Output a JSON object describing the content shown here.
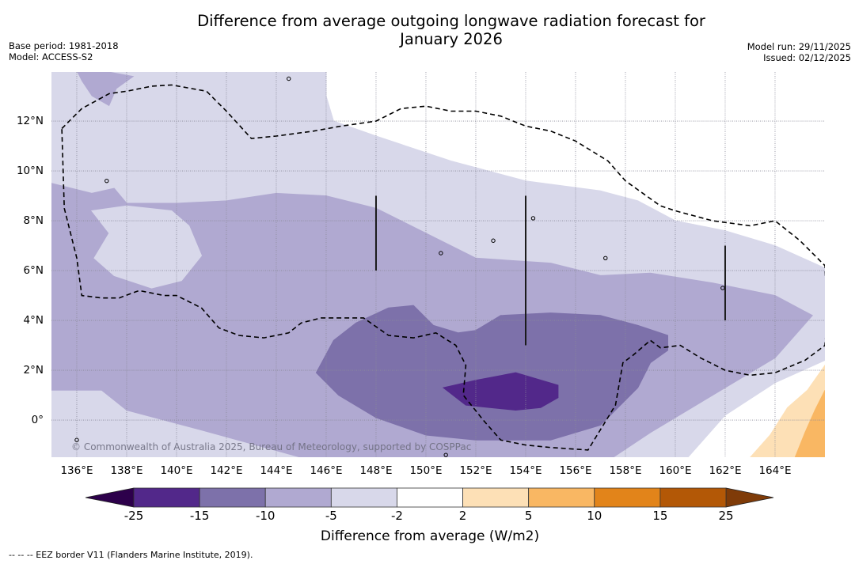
{
  "title": {
    "line1": "Difference from average outgoing longwave radiation forecast for",
    "line2": "January 2026"
  },
  "meta_left": {
    "base_period": "Base period: 1981-2018",
    "model": "Model: ACCESS-S2"
  },
  "meta_right": {
    "model_run": "Model run: 29/11/2025",
    "issued": "Issued: 02/12/2025"
  },
  "copyright": "© Commonwealth of Australia 2025, Bureau of Meteorology, supported by COSPPac",
  "footnote": "--  --  -- EEZ border V11 (Flanders Marine Institute, 2019).",
  "chart_data": {
    "type": "heatmap",
    "title": "Difference from average outgoing longwave radiation forecast for January 2026",
    "xlabel": "",
    "ylabel": "",
    "x_range": [
      135,
      166
    ],
    "y_range": [
      -1.5,
      14
    ],
    "x_ticks": [
      136,
      138,
      140,
      142,
      144,
      146,
      148,
      150,
      152,
      154,
      156,
      158,
      160,
      162,
      164
    ],
    "x_tick_labels": [
      "136°E",
      "138°E",
      "140°E",
      "142°E",
      "144°E",
      "146°E",
      "148°E",
      "150°E",
      "152°E",
      "154°E",
      "156°E",
      "158°E",
      "160°E",
      "162°E",
      "164°E"
    ],
    "y_ticks": [
      0,
      2,
      4,
      6,
      8,
      10,
      12
    ],
    "y_tick_labels": [
      "0°",
      "2°N",
      "4°N",
      "6°N",
      "8°N",
      "10°N",
      "12°N"
    ],
    "grid": true,
    "colorbar": {
      "title": "Difference from average (W/m2)",
      "boundaries": [
        -25,
        -15,
        -10,
        -5,
        -2,
        2,
        5,
        10,
        15,
        25
      ],
      "boundary_labels": [
        "-25",
        "-15",
        "-10",
        "-5",
        "-2",
        "2",
        "5",
        "10",
        "15",
        "25"
      ],
      "colors": [
        "#52288a",
        "#7d71aa",
        "#b0a9d1",
        "#d8d8ea",
        "#ffffff",
        "#fde0b6",
        "#f9b763",
        "#e2841a",
        "#b35806"
      ],
      "extend_min_color": "#2d004b",
      "extend_max_color": "#7f3b08",
      "placement": "bottom"
    },
    "regions": [
      {
        "level": "-5 to -2",
        "color": "#d8d8ea",
        "polygon": [
          [
            135,
            14
          ],
          [
            146,
            14
          ],
          [
            146,
            13
          ],
          [
            146.3,
            12
          ],
          [
            148,
            11.4
          ],
          [
            151,
            10.4
          ],
          [
            154,
            9.6
          ],
          [
            157,
            9.2
          ],
          [
            158.5,
            8.8
          ],
          [
            160,
            8
          ],
          [
            162,
            7.6
          ],
          [
            164,
            7
          ],
          [
            166,
            6.1
          ],
          [
            166,
            2.4
          ],
          [
            164,
            1.5
          ],
          [
            162,
            0.2
          ],
          [
            160.5,
            -1.5
          ],
          [
            135,
            -1.5
          ]
        ]
      },
      {
        "level": "-10 to -5",
        "color": "#b0a9d1",
        "polygon": [
          [
            135,
            9.5
          ],
          [
            136.6,
            9.1
          ],
          [
            137.5,
            9.3
          ],
          [
            138,
            8.7
          ],
          [
            140,
            8.7
          ],
          [
            142,
            8.8
          ],
          [
            144,
            9.1
          ],
          [
            146,
            9.0
          ],
          [
            148,
            8.5
          ],
          [
            150,
            7.5
          ],
          [
            152,
            6.5
          ],
          [
            155,
            6.3
          ],
          [
            157,
            5.8
          ],
          [
            159,
            5.9
          ],
          [
            161.5,
            5.5
          ],
          [
            164,
            5.0
          ],
          [
            165.5,
            4.2
          ],
          [
            164,
            2.5
          ],
          [
            161.5,
            1.0
          ],
          [
            159,
            -0.5
          ],
          [
            157.5,
            -1.5
          ],
          [
            145,
            -1.5
          ],
          [
            141,
            -0.4
          ],
          [
            138,
            0.4
          ],
          [
            137,
            1.2
          ],
          [
            135,
            1.2
          ]
        ]
      },
      {
        "level": "-5 to -2 (inner hole)",
        "color": "#d8d8ea",
        "polygon": [
          [
            136.6,
            8.4
          ],
          [
            137.3,
            7.5
          ],
          [
            136.7,
            6.5
          ],
          [
            137.5,
            5.8
          ],
          [
            139,
            5.3
          ],
          [
            140.2,
            5.6
          ],
          [
            141,
            6.6
          ],
          [
            140.5,
            7.8
          ],
          [
            139.8,
            8.4
          ],
          [
            138,
            8.6
          ]
        ]
      },
      {
        "level": "-15 to -10",
        "color": "#7d71aa",
        "polygon": [
          [
            145.6,
            1.9
          ],
          [
            146.3,
            3.2
          ],
          [
            147.2,
            3.9
          ],
          [
            148.5,
            4.5
          ],
          [
            149.5,
            4.6
          ],
          [
            150.3,
            3.8
          ],
          [
            151.3,
            3.5
          ],
          [
            152,
            3.6
          ],
          [
            153,
            4.2
          ],
          [
            155,
            4.3
          ],
          [
            157,
            4.2
          ],
          [
            158.5,
            3.8
          ],
          [
            159.7,
            3.4
          ],
          [
            159.7,
            2.8
          ],
          [
            159,
            2.3
          ],
          [
            158.5,
            1.3
          ],
          [
            157,
            -0.2
          ],
          [
            155,
            -0.8
          ],
          [
            152,
            -0.8
          ],
          [
            150,
            -0.6
          ],
          [
            148,
            0.1
          ],
          [
            146.5,
            1.0
          ]
        ]
      },
      {
        "level": "-25 to -15",
        "color": "#52288a",
        "polygon": [
          [
            150.7,
            1.3
          ],
          [
            152,
            1.6
          ],
          [
            153.6,
            1.9
          ],
          [
            155.3,
            1.4
          ],
          [
            155.3,
            0.9
          ],
          [
            154.6,
            0.5
          ],
          [
            153.6,
            0.4
          ],
          [
            151.6,
            0.6
          ]
        ]
      },
      {
        "level": "2 to 5",
        "color": "#fde0b6",
        "polygon": [
          [
            163,
            -1.5
          ],
          [
            163.8,
            -0.6
          ],
          [
            164.5,
            0.5
          ],
          [
            165.3,
            1.2
          ],
          [
            166,
            2.2
          ],
          [
            166,
            -1.5
          ]
        ]
      },
      {
        "level": "5 to 10",
        "color": "#f9b763",
        "polygon": [
          [
            164.8,
            -1.5
          ],
          [
            165.2,
            -0.5
          ],
          [
            165.6,
            0.4
          ],
          [
            166,
            1.2
          ],
          [
            166,
            -1.5
          ]
        ]
      }
    ],
    "eez_border_style": "dashed",
    "data_source_note": "EEZ border V11 (Flanders Marine Institute, 2019)."
  }
}
